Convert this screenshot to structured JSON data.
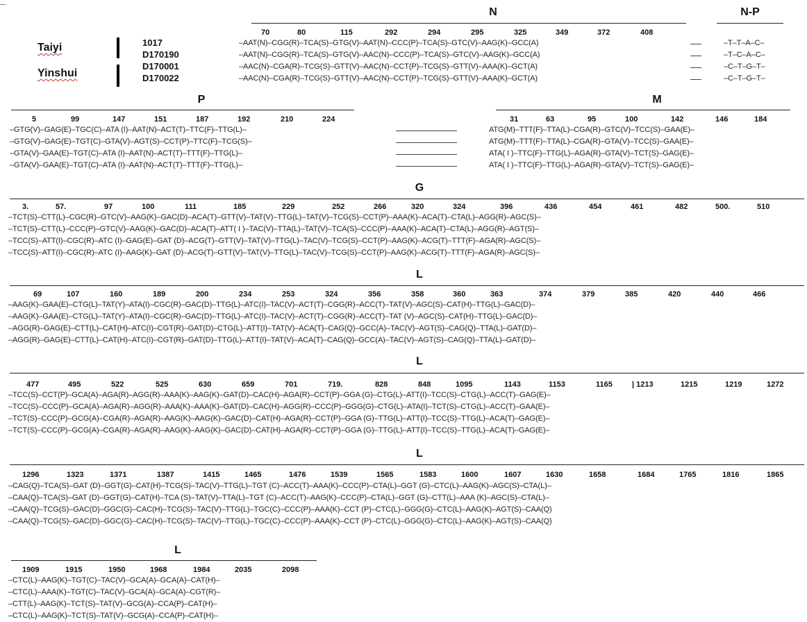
{
  "groups": [
    {
      "name": "Taiyi",
      "strains": [
        "1017",
        "D170190"
      ]
    },
    {
      "name": "Yinshui",
      "strains": [
        "D170001",
        "D170022"
      ]
    }
  ],
  "sections": {
    "N": {
      "title": "N",
      "positions": [
        "70",
        "80",
        "115",
        "292",
        "294",
        "295",
        "325",
        "349",
        "372",
        "408"
      ],
      "rows": [
        "–AAT(N)–CGG(R)–TCA(S)–GTG(V)–AAT(N)–CCC(P)–TCA(S)–GTC(V)–AAG(K)–GCC(A)",
        "–AAT(N)–CGG(R)–TCA(S)–GTG(V)–AAC(N)–CCC(P)–TCA(S)–GTC(V)–AAG(K)–GCC(A)",
        "–AAC(N)–CGA(R)–TCG(S)–GTT(V)–AAC(N)–CCT(P)–TCG(S)–GTT(V)–AAA(K)–GCT(A)",
        "–AAC(N)–CGA(R)–TCG(S)–GTT(V)–AAC(N)–CCT(P)–TCG(S)–GTT(V)–AAA(K)–GCT(A)"
      ]
    },
    "NP": {
      "title": "N-P",
      "rows": [
        "–T–T–A–C–",
        "–T–C–A–C–",
        "–C–T–G–T–",
        "–C–T–G–T–"
      ]
    },
    "P": {
      "title": "P",
      "positions": [
        "5",
        "99",
        "147",
        "151",
        "187",
        "192",
        "210",
        "224"
      ],
      "rows": [
        "–GTG(V)–GAG(E)–TGC(C)–ATA (I)–AAT(N)–ACT(T)–TTC(F)–TTG(L)–",
        "–GTG(V)–GAG(E)–TGT(C)–GTA(V)–AGT(S)–CCT(P)–TTC(F)–TCG(S)–",
        "–GTA(V)–GAA(E)–TGT(C)–ATA (I)–AAT(N)–ACT(T)–TTT(F)–TTG(L)–",
        "–GTA(V)–GAA(E)–TGT(C)–ATA (I)–AAT(N)–ACT(T)–TTT(F)–TTG(L)–"
      ]
    },
    "M": {
      "title": "M",
      "positions": [
        "31",
        "63",
        "95",
        "100",
        "142",
        "146",
        "184"
      ],
      "rows": [
        "ATG(M)–TTT(F)–TTA(L)–CGA(R)–GTC(V)–TCC(S)–GAA(E)–",
        "ATG(M)–TTT(F)–TTA(L)–CGA(R)–GTA(V)–TCC(S)–GAA(E)–",
        "ATA( I )–TTC(F)–TTG(L)–AGA(R)–GTA(V)–TCT(S)–GAG(E)–",
        "ATA( I )–TTC(F)–TTG(L)–AGA(R)–GTA(V)–TCT(S)–GAG(E)–"
      ]
    },
    "G": {
      "title": "G",
      "positions": [
        "3.",
        "57.",
        "97",
        "100",
        "111",
        "185",
        "229",
        "252",
        "266",
        "320",
        "324",
        "396",
        "436",
        "454",
        "461",
        "482",
        "500.",
        "510"
      ],
      "rows": [
        "–TCT(S)–CTT(L)–CGC(R)–GTC(V)–AAG(K)–GAC(D)–ACA(T)–GTT(V)–TAT(V)–TTG(L)–TAT(V)–TCG(S)–CCT(P)–AAA(K)–ACA(T)–CTA(L)–AGG(R)–AGC(S)–",
        "–TCT(S)–CTT(L)–CCC(P)–GTC(V)–AAG(K)–GAC(D)–ACA(T)–ATT( I )–TAC(V)–TTA(L)–TAT(V)–TCA(S)–CCC(P)–AAA(K)–ACA(T)–CTA(L)–AGG(R)–AGT(S)–",
        "–TCC(S)–ATT(I)–CGC(R)–ATC (I)–GAG(E)–GAT (D)–ACG(T)–GTT(V)–TAT(V)–TTG(L)–TAC(V)–TCG(S)–CCT(P)–AAG(K)–ACG(T)–TTT(F)–AGA(R)–AGC(S)–",
        "–TCC(S)–ATT(I)–CGC(R)–ATC (I)–AAG(K)–GAT (D)–ACG(T)–GTT(V)–TAT(V)–TTG(L)–TAC(V)–TCG(S)–CCT(P)–AAG(K)–ACG(T)–TTT(F)–AGA(R)–AGC(S)–"
      ]
    },
    "L1": {
      "title": "L",
      "positions": [
        "69",
        "107",
        "160",
        "189",
        "200",
        "234",
        "253",
        "324",
        "356",
        "358",
        "360",
        "363",
        "374",
        "379",
        "385",
        "420",
        "440",
        "466"
      ],
      "rows": [
        "–AAG(K)–GAA(E)–CTG(L)–TAT(Y)–ATA(I)–CGC(R)–GAC(D)–TTG(L)–ATC(I)–TAC(V)–ACT(T)–CGG(R)–ACC(T)–TAT(V)–AGC(S)–CAT(H)–TTG(L)–GAC(D)–",
        "–AAG(K)–GAA(E)–CTG(L)–TAT(Y)–ATA(I)–CGC(R)–GAC(D)–TTG(L)–ATC(I)–TAC(V)–ACT(T)–CGG(R)–ACC(T)–TAT (V)–AGC(S)–CAT(H)–TTG(L)–GAC(D)–",
        "–AGG(R)–GAG(E)–CTT(L)–CAT(H)–ATC(I)–CGT(R)–GAT(D)–CTG(L)–ATT(I)–TAT(V)–ACA(T)–CAG(Q)–GCC(A)–TAC(V)–AGT(S)–CAG(Q)–TTA(L)–GAT(D)–",
        "–AGG(R)–GAG(E)–CTT(L)–CAT(H)–ATC(I)–CGT(R)–GAT(D)–TTG(L)–ATT(I)–TAT(V)–ACA(T)–CAG(Q)–GCC(A)–TAC(V)–AGT(S)–CAG(Q)–TTA(L)–GAT(D)–"
      ]
    },
    "L2": {
      "title": "L",
      "positions": [
        "477",
        "495",
        "522",
        "525",
        "630",
        "659",
        "701",
        "719.",
        "828",
        "848",
        "1095",
        "1143",
        "1153",
        "1165",
        "| 1213",
        "1215",
        "1219",
        "1272"
      ],
      "rows": [
        "–TCC(S)–CCT(P)–GCA(A)–AGA(R)–AGG(R)–AAA(K)–AAG(K)–GAT(D)–CAC(H)–AGA(R)–CCT(P)–GGA (G)–CTG(L)–ATT(I)–TCC(S)–CTG(L)–ACC(T)–GAG(E)–",
        "–TCC(S)–CCC(P)–GCA(A)–AGA(R)–AGG(R)–AAA(K)–AAA(K)–GAT(D)–CAC(H)–AGG(R)–CCC(P)–GGG(G)–CTG(L)–ATA(I)–TCT(S)–CTG(L)–ACC(T)–GAA(E)–",
        "–TCT(S)–CCC(P)–GCG(A)–CGA(R)–AGA(R)–AAG(K)–AAG(K)–GAC(D)–CAT(H)–AGA(R)–CCT(P)–GGA (G)–TTG(L)–ATT(I)–TCC(S)–TTG(L)–ACA(T)–GAG(E)–",
        "–TCT(S)–CCC(P)–GCG(A)–CGA(R)–AGA(R)–AAG(K)–AAG(K)–GAC(D)–CAT(H)–AGA(R)–CCT(P)–GGA (G)–TTG(L)–ATT(I)–TCC(S)–TTG(L)–ACA(T)–GAG(E)–"
      ]
    },
    "L3": {
      "title": "L",
      "positions": [
        "1296",
        "1323",
        "1371",
        "1387",
        "1415",
        "1465",
        "1476",
        "1539",
        "1565",
        "1583",
        "1600",
        "1607",
        "1630",
        "1658",
        "1684",
        "1765",
        "1816",
        "1865"
      ],
      "rows": [
        "–CAG(Q)–TCA(S)–GAT (D)–GGT(G)–CAT(H)–TCG(S)–TAC(V)–TTG(L)–TGT (C)–ACC(T)–AAA(K)–CCC(P)–CTA(L)–GGT (G)–CTC(L)–AAG(K)–AGC(S)–CTA(L)–",
        "–CAA(Q)–TCA(S)–GAT (D)–GGT(G)–CAT(H)–TCA (S)–TAT(V)–TTA(L)–TGT (C)–ACC(T)–AAG(K)–CCC(P)–CTA(L)–GGT (G)–CTT(L)–AAA (K)–AGC(S)–CTA(L)–",
        "–CAA(Q)–TCG(S)–GAC(D)–GGC(G)–CAC(H)–TCG(S)–TAC(V)–TTG(L)–TGC(C)–CCC(P)–AAA(K)–CCT (P)–CTC(L)–GGG(G)–CTC(L)–AAG(K)–AGT(S)–CAA(Q)",
        "–CAA(Q)–TCG(S)–GAC(D)–GGC(G)–CAC(H)–TCG(S)–TAC(V)–TTG(L)–TGC(C)–CCC(P)–AAA(K)–CCT (P)–CTC(L)–GGG(G)–CTC(L)–AAG(K)–AGT(S)–CAA(Q)"
      ]
    },
    "L4": {
      "title": "L",
      "positions": [
        "1909",
        "1915",
        "1950",
        "1968",
        "1984",
        "2035",
        "2098"
      ],
      "rows": [
        "–CTC(L)–AAG(K)–TGT(C)–TAC(V)–GCA(A)–GCA(A)–CAT(H)–",
        "–CTC(L)–AAA(K)–TGT(C)–TAC(V)–GCA(A)–GCA(A)–CGT(R)–",
        "–CTT(L)–AAG(K)–TCT(S)–TAT(V)–GCG(A)–CCA(P)–CAT(H)–",
        "–CTC(L)–AAG(K)–TCT(S)–TAT(V)–GCG(A)–CCA(P)–CAT(H)–"
      ]
    }
  }
}
